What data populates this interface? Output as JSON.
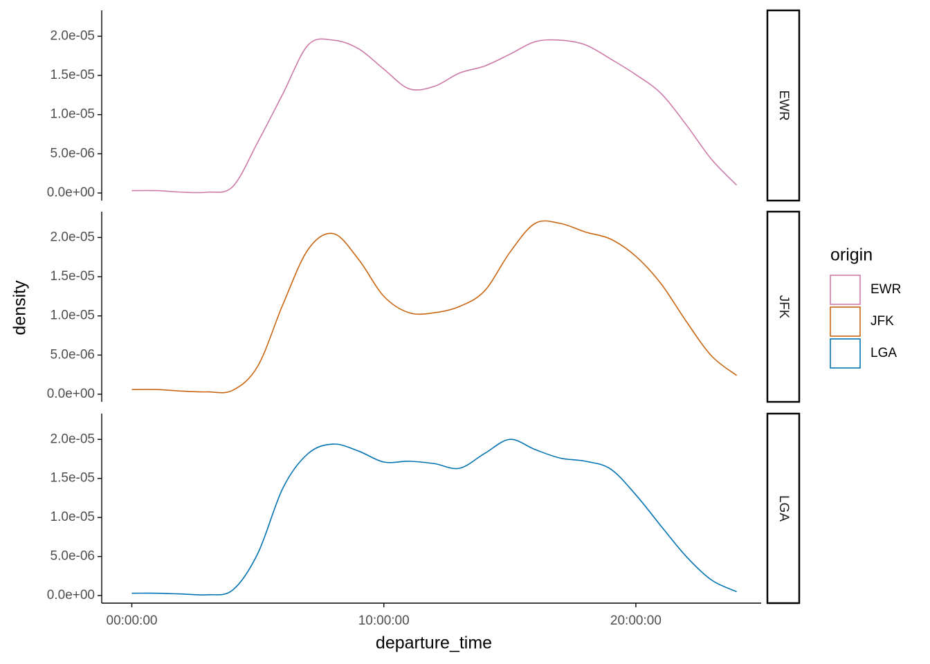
{
  "chart_data": {
    "type": "line",
    "facets": true,
    "x_label": "departure_time",
    "y_label": "density",
    "legend_title": "origin",
    "x": [
      0,
      3600,
      7200,
      10800,
      14400,
      18000,
      21600,
      25200,
      28800,
      32400,
      36000,
      39600,
      43200,
      46800,
      50400,
      54000,
      57600,
      61200,
      64800,
      68400,
      72000,
      75600,
      79200,
      82800,
      86400
    ],
    "xlim": [
      -4300,
      89900
    ],
    "xticks": [
      {
        "value": 0,
        "label": "00:00:00"
      },
      {
        "value": 36000,
        "label": "10:00:00"
      },
      {
        "value": 72000,
        "label": "20:00:00"
      }
    ],
    "ylim": [
      -9.7e-07,
      2.33e-05
    ],
    "yticks": [
      {
        "value": 0,
        "label": "0.0e+00"
      },
      {
        "value": 5e-06,
        "label": "5.0e-06"
      },
      {
        "value": 1e-05,
        "label": "1.0e-05"
      },
      {
        "value": 1.5e-05,
        "label": "1.5e-05"
      },
      {
        "value": 2e-05,
        "label": "2.0e-05"
      }
    ],
    "series": [
      {
        "name": "EWR",
        "color": "#CC79A7",
        "values": [
          3e-07,
          3e-07,
          1e-07,
          1e-07,
          8e-07,
          6.5e-06,
          1.27e-05,
          1.89e-05,
          1.95e-05,
          1.84e-05,
          1.58e-05,
          1.33e-05,
          1.36e-05,
          1.53e-05,
          1.62e-05,
          1.77e-05,
          1.93e-05,
          1.95e-05,
          1.89e-05,
          1.71e-05,
          1.51e-05,
          1.27e-05,
          8.7e-06,
          4.3e-06,
          1e-06
        ]
      },
      {
        "name": "JFK",
        "color": "#C8640F",
        "values": [
          6e-07,
          6e-07,
          4e-07,
          3e-07,
          5e-07,
          3.6e-06,
          1.15e-05,
          1.85e-05,
          2.05e-05,
          1.72e-05,
          1.25e-05,
          1.04e-05,
          1.04e-05,
          1.12e-05,
          1.32e-05,
          1.81e-05,
          2.18e-05,
          2.18e-05,
          2.07e-05,
          1.98e-05,
          1.76e-05,
          1.41e-05,
          9.3e-06,
          4.9e-06,
          2.4e-06
        ]
      },
      {
        "name": "LGA",
        "color": "#0072B2",
        "values": [
          3e-07,
          3e-07,
          2e-07,
          1e-07,
          7e-07,
          5.4e-06,
          1.38e-05,
          1.82e-05,
          1.94e-05,
          1.85e-05,
          1.71e-05,
          1.72e-05,
          1.69e-05,
          1.63e-05,
          1.82e-05,
          2e-05,
          1.87e-05,
          1.76e-05,
          1.72e-05,
          1.62e-05,
          1.29e-05,
          8.9e-06,
          5e-06,
          2e-06,
          5e-07
        ]
      }
    ]
  }
}
